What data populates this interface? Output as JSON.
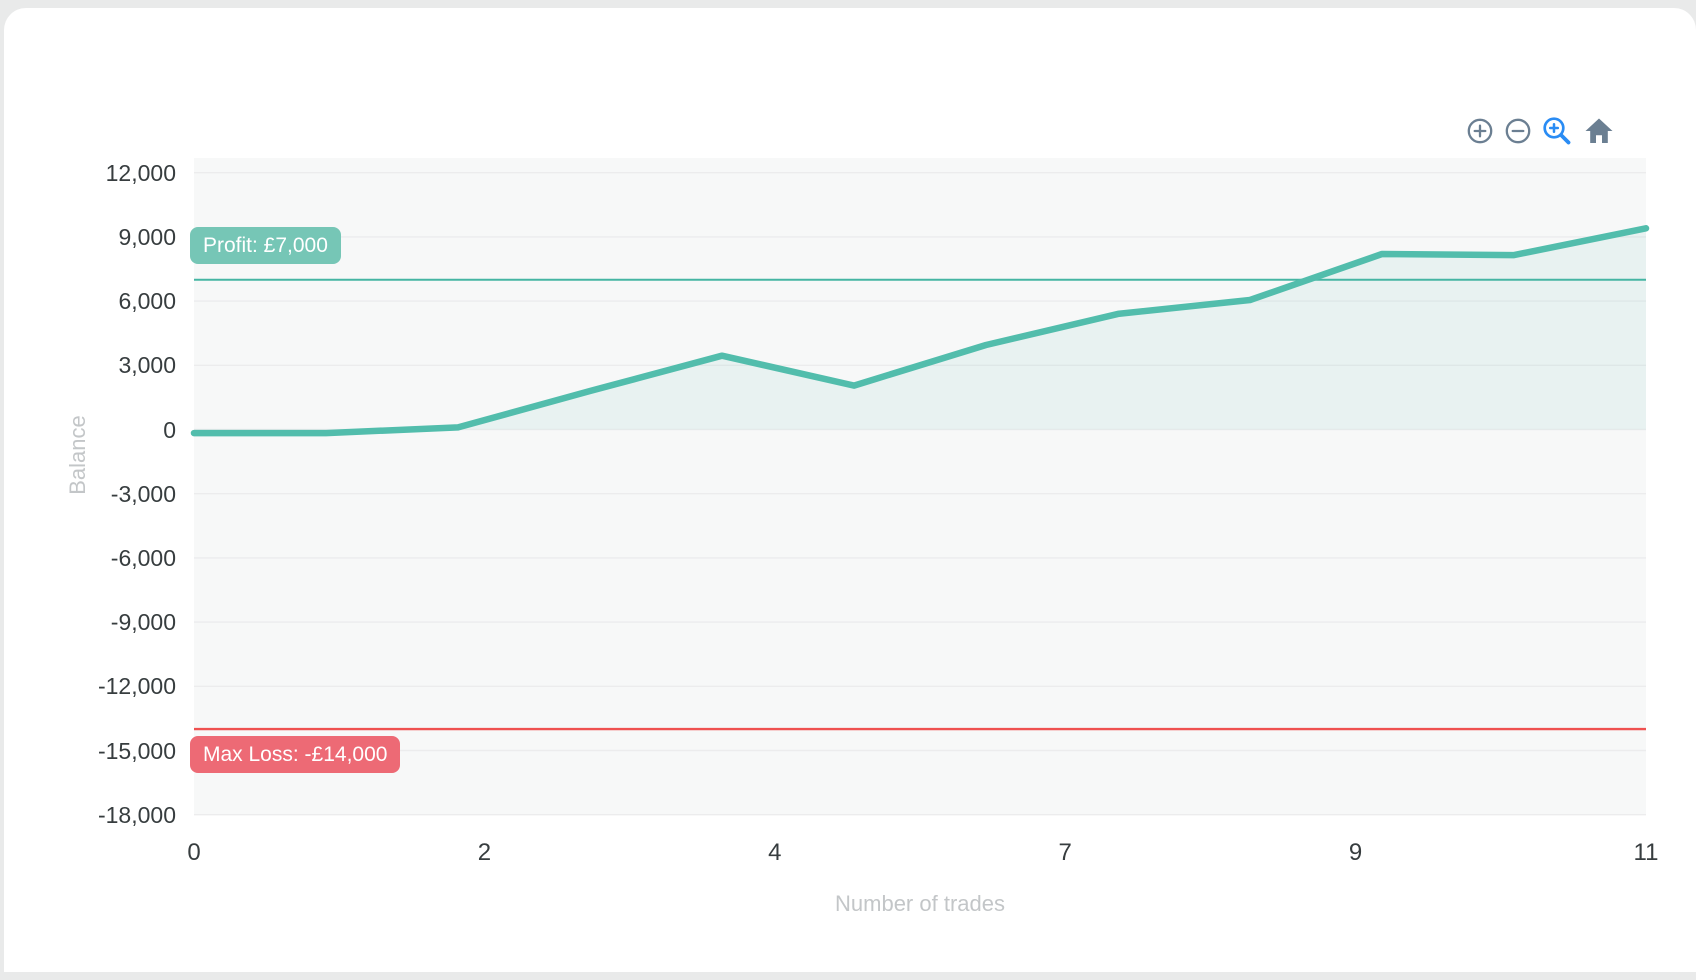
{
  "page": {
    "background_color": "#e9eaea",
    "card_color": "#ffffff"
  },
  "toolbar": {
    "icons": [
      {
        "name": "zoom-in",
        "color": "#6b7f92",
        "active": false
      },
      {
        "name": "zoom-out",
        "color": "#6b7f92",
        "active": false
      },
      {
        "name": "selection-zoom",
        "color": "#2a8cf4",
        "active": true
      },
      {
        "name": "home-reset",
        "color": "#6b7f92",
        "active": false
      }
    ]
  },
  "chart_data": {
    "type": "area",
    "title": "",
    "xlabel": "Number of trades",
    "ylabel": "Balance",
    "x": [
      0,
      1,
      2,
      3,
      4,
      5,
      6,
      7,
      8,
      9,
      10,
      11
    ],
    "series": [
      {
        "name": "Balance",
        "values": [
          -170,
          -170,
          100,
          1800,
          3450,
          2050,
          3950,
          5400,
          6050,
          8200,
          8150,
          9400
        ]
      }
    ],
    "xlim": [
      0,
      11
    ],
    "ylim": [
      -18000,
      12000
    ],
    "xticks": {
      "values": [
        0,
        2.2,
        4.4,
        6.6,
        8.8,
        11
      ],
      "labels": [
        "0",
        "2",
        "4",
        "7",
        "9",
        "11"
      ]
    },
    "yticks": {
      "values": [
        12000,
        9000,
        6000,
        3000,
        0,
        -3000,
        -6000,
        -9000,
        -12000,
        -15000,
        -18000
      ],
      "labels": [
        "12,000",
        "9,000",
        "6,000",
        "3,000",
        "0",
        "-3,000",
        "-6,000",
        "-9,000",
        "-12,000",
        "-15,000",
        "-18,000"
      ]
    },
    "grid": "horizontal",
    "legend": "none",
    "line_color": "#52bdac",
    "fill_color": "rgba(84,191,174,0.09)",
    "plot_background": "#f7f8f8",
    "gridline_color": "#ececed",
    "annotations": [
      {
        "id": "profit",
        "label": "Profit: £7,000",
        "value": 7000,
        "line_color": "#45b5a3",
        "badge_color": "#76c6b6",
        "text_color": "#ffffff",
        "label_position": "above-left"
      },
      {
        "id": "max-loss",
        "label": "Max Loss: -£14,000",
        "value": -14000,
        "line_color": "#ef5150",
        "badge_color": "#ed6a75",
        "text_color": "#ffffff",
        "label_position": "below-left"
      }
    ]
  }
}
